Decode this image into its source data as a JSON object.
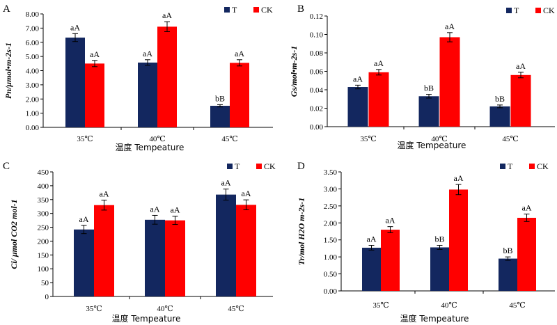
{
  "colors": {
    "T": "#13275f",
    "CK": "#ff0000",
    "axis": "#000000"
  },
  "chart_data": [
    {
      "panel_label": "A",
      "type": "bar",
      "ylabel": "Pn/μmol•m-2s-1",
      "xlabel": "温度 Tempeature",
      "categories": [
        "35℃",
        "40℃",
        "45℃"
      ],
      "legend": [
        "T",
        "CK"
      ],
      "ylim": [
        0,
        8
      ],
      "yticks": [
        "0.00",
        "1.00",
        "2.00",
        "3.00",
        "4.00",
        "5.00",
        "6.00",
        "7.00",
        "8.00"
      ],
      "series": [
        {
          "name": "T",
          "values": [
            6.33,
            4.57,
            1.52
          ],
          "errors": [
            0.28,
            0.2,
            0.08
          ],
          "labels": [
            "aA",
            "aA",
            "bB"
          ]
        },
        {
          "name": "CK",
          "values": [
            4.5,
            7.1,
            4.55
          ],
          "errors": [
            0.22,
            0.35,
            0.22
          ],
          "labels": [
            "aA",
            "aA",
            "aA"
          ]
        }
      ]
    },
    {
      "panel_label": "B",
      "type": "bar",
      "ylabel": "Gs/mol•m-2s-1",
      "xlabel": "温度 Tempeature",
      "categories": [
        "35℃",
        "40℃",
        "45℃"
      ],
      "legend": [
        "T",
        "CK"
      ],
      "ylim": [
        0,
        0.12
      ],
      "yticks": [
        "0.00",
        "0.02",
        "0.04",
        "0.06",
        "0.08",
        "0.10",
        "0.12"
      ],
      "series": [
        {
          "name": "T",
          "values": [
            0.043,
            0.033,
            0.022
          ],
          "errors": [
            0.002,
            0.002,
            0.0015
          ],
          "labels": [
            "aA",
            "bB",
            "bB"
          ]
        },
        {
          "name": "CK",
          "values": [
            0.059,
            0.097,
            0.056
          ],
          "errors": [
            0.003,
            0.005,
            0.003
          ],
          "labels": [
            "aA",
            "aA",
            "aA"
          ]
        }
      ]
    },
    {
      "panel_label": "C",
      "type": "bar",
      "ylabel": "Ci/ μmol CO2 mol-1",
      "xlabel": "温度 Tempeature",
      "categories": [
        "35℃",
        "40℃",
        "45℃"
      ],
      "legend": [
        "T",
        "CK"
      ],
      "ylim": [
        0,
        450
      ],
      "yticks": [
        "0",
        "50",
        "100",
        "150",
        "200",
        "250",
        "300",
        "350",
        "400",
        "450"
      ],
      "series": [
        {
          "name": "T",
          "values": [
            242,
            277,
            368
          ],
          "errors": [
            15,
            16,
            20
          ],
          "labels": [
            "aA",
            "aA",
            "aA"
          ]
        },
        {
          "name": "CK",
          "values": [
            330,
            275,
            331
          ],
          "errors": [
            18,
            15,
            18
          ],
          "labels": [
            "aA",
            "aA",
            "aA"
          ]
        }
      ]
    },
    {
      "panel_label": "D",
      "type": "bar",
      "ylabel": "Tr/mol H2O m-2s-1",
      "xlabel": "温度 Tempeature",
      "categories": [
        "35℃",
        "40℃",
        "45℃"
      ],
      "legend": [
        "T",
        "CK"
      ],
      "ylim": [
        0,
        3.5
      ],
      "yticks": [
        "0.00",
        "0.50",
        "1.00",
        "1.50",
        "2.00",
        "2.50",
        "3.00",
        "3.50"
      ],
      "series": [
        {
          "name": "T",
          "values": [
            1.27,
            1.28,
            0.95
          ],
          "errors": [
            0.07,
            0.06,
            0.05
          ],
          "labels": [
            "aA",
            "bB",
            "bB"
          ]
        },
        {
          "name": "CK",
          "values": [
            1.8,
            2.98,
            2.15
          ],
          "errors": [
            0.09,
            0.15,
            0.11
          ],
          "labels": [
            "aA",
            "aA",
            "aA"
          ]
        }
      ]
    }
  ]
}
